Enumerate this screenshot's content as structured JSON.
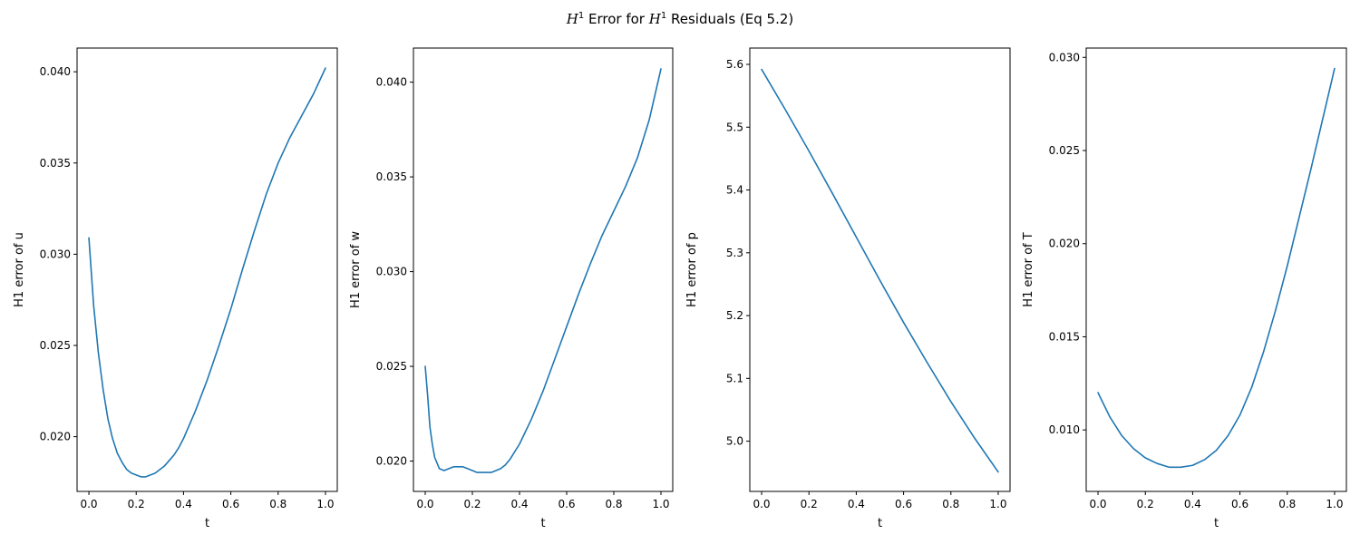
{
  "figure": {
    "title_prefix": "Error for",
    "title_suffix": "Residuals (Eq 5.2)",
    "title_symbol": "H",
    "title_exponent": "1"
  },
  "chart_data": [
    {
      "type": "line",
      "xlabel": "t",
      "ylabel": "H1 error of u",
      "xlim": [
        -0.05,
        1.05
      ],
      "ylim": [
        0.017,
        0.0413
      ],
      "xticks": [
        0.0,
        0.2,
        0.4,
        0.6,
        0.8,
        1.0
      ],
      "xtick_labels": [
        "0.0",
        "0.2",
        "0.4",
        "0.6",
        "0.8",
        "1.0"
      ],
      "yticks": [
        0.02,
        0.025,
        0.03,
        0.035,
        0.04
      ],
      "ytick_labels": [
        "0.020",
        "0.025",
        "0.030",
        "0.035",
        "0.040"
      ],
      "grid": false,
      "color": "#1f77b4",
      "x": [
        0,
        0.02,
        0.04,
        0.06,
        0.08,
        0.1,
        0.12,
        0.14,
        0.16,
        0.18,
        0.2,
        0.22,
        0.24,
        0.26,
        0.28,
        0.3,
        0.32,
        0.34,
        0.36,
        0.38,
        0.4,
        0.45,
        0.5,
        0.55,
        0.6,
        0.65,
        0.7,
        0.75,
        0.8,
        0.85,
        0.9,
        0.95,
        1.0
      ],
      "y": [
        0.0309,
        0.0272,
        0.0246,
        0.0226,
        0.021,
        0.0199,
        0.0191,
        0.0186,
        0.0182,
        0.018,
        0.0179,
        0.0178,
        0.0178,
        0.0179,
        0.018,
        0.0182,
        0.0184,
        0.0187,
        0.019,
        0.0194,
        0.0199,
        0.0214,
        0.0231,
        0.025,
        0.027,
        0.0292,
        0.0313,
        0.0333,
        0.035,
        0.0364,
        0.0376,
        0.0388,
        0.0402
      ]
    },
    {
      "type": "line",
      "xlabel": "t",
      "ylabel": "H1 error of w",
      "xlim": [
        -0.05,
        1.05
      ],
      "ylim": [
        0.0184,
        0.0418
      ],
      "xticks": [
        0.0,
        0.2,
        0.4,
        0.6,
        0.8,
        1.0
      ],
      "xtick_labels": [
        "0.0",
        "0.2",
        "0.4",
        "0.6",
        "0.8",
        "1.0"
      ],
      "yticks": [
        0.02,
        0.025,
        0.03,
        0.035,
        0.04
      ],
      "ytick_labels": [
        "0.020",
        "0.025",
        "0.030",
        "0.035",
        "0.040"
      ],
      "grid": false,
      "color": "#1f77b4",
      "x": [
        0,
        0.01,
        0.02,
        0.03,
        0.04,
        0.06,
        0.08,
        0.1,
        0.12,
        0.14,
        0.16,
        0.18,
        0.2,
        0.22,
        0.24,
        0.26,
        0.28,
        0.3,
        0.32,
        0.34,
        0.36,
        0.4,
        0.45,
        0.5,
        0.55,
        0.6,
        0.65,
        0.7,
        0.75,
        0.8,
        0.85,
        0.9,
        0.95,
        1.0
      ],
      "y": [
        0.025,
        0.0235,
        0.0218,
        0.0209,
        0.0202,
        0.0196,
        0.0195,
        0.0196,
        0.0197,
        0.0197,
        0.0197,
        0.0196,
        0.0195,
        0.0194,
        0.0194,
        0.0194,
        0.0194,
        0.0195,
        0.0196,
        0.0198,
        0.0201,
        0.0209,
        0.0222,
        0.0237,
        0.0254,
        0.0271,
        0.0288,
        0.0304,
        0.0319,
        0.0332,
        0.0345,
        0.036,
        0.038,
        0.0407
      ]
    },
    {
      "type": "line",
      "xlabel": "t",
      "ylabel": "H1 error of p",
      "xlim": [
        -0.05,
        1.05
      ],
      "ylim": [
        4.92,
        5.626
      ],
      "xticks": [
        0.0,
        0.2,
        0.4,
        0.6,
        0.8,
        1.0
      ],
      "xtick_labels": [
        "0.0",
        "0.2",
        "0.4",
        "0.6",
        "0.8",
        "1.0"
      ],
      "yticks": [
        5.0,
        5.1,
        5.2,
        5.3,
        5.4,
        5.5,
        5.6
      ],
      "ytick_labels": [
        "5.0",
        "5.1",
        "5.2",
        "5.3",
        "5.4",
        "5.5",
        "5.6"
      ],
      "grid": false,
      "color": "#1f77b4",
      "x": [
        0,
        0.1,
        0.2,
        0.3,
        0.4,
        0.5,
        0.6,
        0.7,
        0.8,
        0.9,
        1.0
      ],
      "y": [
        5.592,
        5.528,
        5.462,
        5.394,
        5.325,
        5.256,
        5.189,
        5.125,
        5.063,
        5.005,
        4.951
      ]
    },
    {
      "type": "line",
      "xlabel": "t",
      "ylabel": "H1 error of T",
      "xlim": [
        -0.05,
        1.05
      ],
      "ylim": [
        0.0067,
        0.0305
      ],
      "xticks": [
        0.0,
        0.2,
        0.4,
        0.6,
        0.8,
        1.0
      ],
      "xtick_labels": [
        "0.0",
        "0.2",
        "0.4",
        "0.6",
        "0.8",
        "1.0"
      ],
      "yticks": [
        0.01,
        0.015,
        0.02,
        0.025,
        0.03
      ],
      "ytick_labels": [
        "0.010",
        "0.015",
        "0.020",
        "0.025",
        "0.030"
      ],
      "grid": false,
      "color": "#1f77b4",
      "x": [
        0,
        0.05,
        0.1,
        0.15,
        0.2,
        0.25,
        0.3,
        0.35,
        0.4,
        0.45,
        0.5,
        0.55,
        0.6,
        0.65,
        0.7,
        0.75,
        0.8,
        0.85,
        0.9,
        0.95,
        1.0
      ],
      "y": [
        0.012,
        0.0107,
        0.0097,
        0.009,
        0.0085,
        0.0082,
        0.008,
        0.008,
        0.0081,
        0.0084,
        0.0089,
        0.0097,
        0.0108,
        0.0123,
        0.0142,
        0.0164,
        0.0188,
        0.0214,
        0.024,
        0.0267,
        0.0294
      ]
    }
  ]
}
